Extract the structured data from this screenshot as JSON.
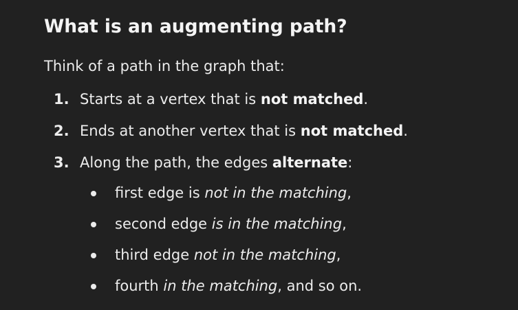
{
  "heading": "What is an augmenting path?",
  "intro": "Think of a path in the graph that:",
  "ordered_list": [
    {
      "num": "1.",
      "pre": "Starts at a vertex that is ",
      "bold": "not matched",
      "post": "."
    },
    {
      "num": "2.",
      "pre": "Ends at another vertex that is ",
      "bold": "not matched",
      "post": "."
    },
    {
      "num": "3.",
      "pre": "Along the path, the edges ",
      "bold": "alternate",
      "post": ":"
    }
  ],
  "bullet_list": [
    {
      "pre": "first edge is ",
      "italic": "not in the matching",
      "post": ","
    },
    {
      "pre": "second edge ",
      "italic": "is in the matching",
      "post": ","
    },
    {
      "pre": "third edge ",
      "italic": "not in the matching",
      "post": ","
    },
    {
      "pre": "fourth ",
      "italic": "in the matching",
      "post": ", and so on."
    }
  ]
}
